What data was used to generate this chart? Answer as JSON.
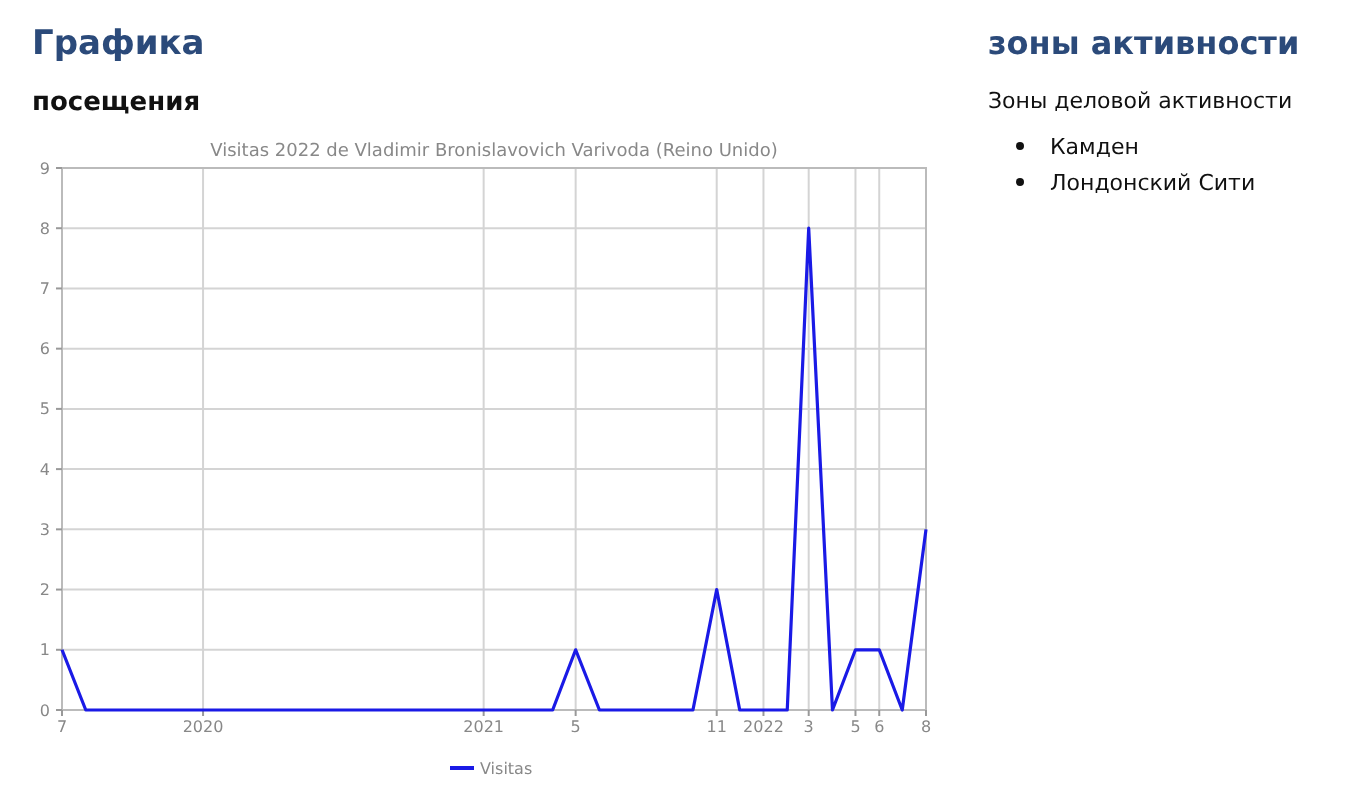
{
  "chart_data": [
    {
      "type": "line",
      "title": "Visitas 2022 de Vladimir Bronislavovich Varivoda (Reino Unido)",
      "annotations": [
        "Графика",
        "посещения"
      ],
      "x": [
        "2019-07",
        "2019-08",
        "2019-09",
        "2019-10",
        "2019-11",
        "2019-12",
        "2020-01",
        "2020-02",
        "2020-03",
        "2020-04",
        "2020-05",
        "2020-06",
        "2020-07",
        "2020-08",
        "2020-09",
        "2020-10",
        "2020-11",
        "2020-12",
        "2021-01",
        "2021-02",
        "2021-03",
        "2021-04",
        "2021-05",
        "2021-06",
        "2021-07",
        "2021-08",
        "2021-09",
        "2021-10",
        "2021-11",
        "2021-12",
        "2022-01",
        "2022-02",
        "2022-03",
        "2022-04",
        "2022-05",
        "2022-06",
        "2022-07",
        "2022-08"
      ],
      "series": [
        {
          "name": "Visitas",
          "color": "#1a1ae6",
          "values": [
            1,
            0,
            0,
            0,
            0,
            0,
            0,
            0,
            0,
            0,
            0,
            0,
            0,
            0,
            0,
            0,
            0,
            0,
            0,
            0,
            0,
            0,
            1,
            0,
            0,
            0,
            0,
            0,
            2,
            0,
            0,
            0,
            8,
            0,
            1,
            1,
            0,
            3
          ]
        }
      ],
      "xlim": [
        "2019-07",
        "2022-08"
      ],
      "xticks": [
        {
          "value": "2019-07",
          "label": "7"
        },
        {
          "value": "2020-01",
          "label": "2020"
        },
        {
          "value": "2021-01",
          "label": "2021"
        },
        {
          "value": "2021-05",
          "label": "5"
        },
        {
          "value": "2021-11",
          "label": "11"
        },
        {
          "value": "2022-01",
          "label": "2022"
        },
        {
          "value": "2022-03",
          "label": "3"
        },
        {
          "value": "2022-05",
          "label": "5"
        },
        {
          "value": "2022-06",
          "label": "6"
        },
        {
          "value": "2022-08",
          "label": "8"
        }
      ],
      "ylim": [
        0,
        9
      ],
      "yticks": [
        0,
        1,
        2,
        3,
        4,
        5,
        6,
        7,
        8,
        9
      ],
      "grid": true,
      "legend": "bottom",
      "marker": "none",
      "line_style": "solid"
    },
    {
      "type": "other",
      "title": "зоны активности",
      "subtitle": "Зоны деловой активности",
      "annotations": [
        "Камден",
        "Лондонский Сити"
      ]
    }
  ]
}
